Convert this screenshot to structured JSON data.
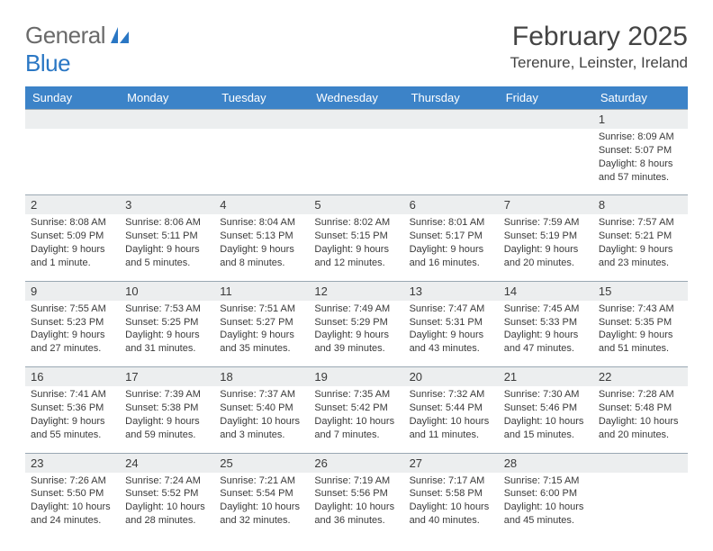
{
  "logo": {
    "line1": "General",
    "line2": "Blue"
  },
  "title": "February 2025",
  "subtitle": "Terenure, Leinster, Ireland",
  "colors": {
    "headerBg": "#3c83c8",
    "headerText": "#ffffff",
    "dayStripBg": "#eceeef",
    "borderTop": "#9aa8b3",
    "bodyText": "#3a3a3a",
    "logoGray": "#6a6a6a",
    "logoBlue": "#2a77c4",
    "background": "#ffffff"
  },
  "weekdays": [
    "Sunday",
    "Monday",
    "Tuesday",
    "Wednesday",
    "Thursday",
    "Friday",
    "Saturday"
  ],
  "weeks": [
    {
      "nums": [
        "",
        "",
        "",
        "",
        "",
        "",
        "1"
      ],
      "cells": [
        null,
        null,
        null,
        null,
        null,
        null,
        {
          "sunrise": "Sunrise: 8:09 AM",
          "sunset": "Sunset: 5:07 PM",
          "dl1": "Daylight: 8 hours",
          "dl2": "and 57 minutes."
        }
      ]
    },
    {
      "nums": [
        "2",
        "3",
        "4",
        "5",
        "6",
        "7",
        "8"
      ],
      "cells": [
        {
          "sunrise": "Sunrise: 8:08 AM",
          "sunset": "Sunset: 5:09 PM",
          "dl1": "Daylight: 9 hours",
          "dl2": "and 1 minute."
        },
        {
          "sunrise": "Sunrise: 8:06 AM",
          "sunset": "Sunset: 5:11 PM",
          "dl1": "Daylight: 9 hours",
          "dl2": "and 5 minutes."
        },
        {
          "sunrise": "Sunrise: 8:04 AM",
          "sunset": "Sunset: 5:13 PM",
          "dl1": "Daylight: 9 hours",
          "dl2": "and 8 minutes."
        },
        {
          "sunrise": "Sunrise: 8:02 AM",
          "sunset": "Sunset: 5:15 PM",
          "dl1": "Daylight: 9 hours",
          "dl2": "and 12 minutes."
        },
        {
          "sunrise": "Sunrise: 8:01 AM",
          "sunset": "Sunset: 5:17 PM",
          "dl1": "Daylight: 9 hours",
          "dl2": "and 16 minutes."
        },
        {
          "sunrise": "Sunrise: 7:59 AM",
          "sunset": "Sunset: 5:19 PM",
          "dl1": "Daylight: 9 hours",
          "dl2": "and 20 minutes."
        },
        {
          "sunrise": "Sunrise: 7:57 AM",
          "sunset": "Sunset: 5:21 PM",
          "dl1": "Daylight: 9 hours",
          "dl2": "and 23 minutes."
        }
      ]
    },
    {
      "nums": [
        "9",
        "10",
        "11",
        "12",
        "13",
        "14",
        "15"
      ],
      "cells": [
        {
          "sunrise": "Sunrise: 7:55 AM",
          "sunset": "Sunset: 5:23 PM",
          "dl1": "Daylight: 9 hours",
          "dl2": "and 27 minutes."
        },
        {
          "sunrise": "Sunrise: 7:53 AM",
          "sunset": "Sunset: 5:25 PM",
          "dl1": "Daylight: 9 hours",
          "dl2": "and 31 minutes."
        },
        {
          "sunrise": "Sunrise: 7:51 AM",
          "sunset": "Sunset: 5:27 PM",
          "dl1": "Daylight: 9 hours",
          "dl2": "and 35 minutes."
        },
        {
          "sunrise": "Sunrise: 7:49 AM",
          "sunset": "Sunset: 5:29 PM",
          "dl1": "Daylight: 9 hours",
          "dl2": "and 39 minutes."
        },
        {
          "sunrise": "Sunrise: 7:47 AM",
          "sunset": "Sunset: 5:31 PM",
          "dl1": "Daylight: 9 hours",
          "dl2": "and 43 minutes."
        },
        {
          "sunrise": "Sunrise: 7:45 AM",
          "sunset": "Sunset: 5:33 PM",
          "dl1": "Daylight: 9 hours",
          "dl2": "and 47 minutes."
        },
        {
          "sunrise": "Sunrise: 7:43 AM",
          "sunset": "Sunset: 5:35 PM",
          "dl1": "Daylight: 9 hours",
          "dl2": "and 51 minutes."
        }
      ]
    },
    {
      "nums": [
        "16",
        "17",
        "18",
        "19",
        "20",
        "21",
        "22"
      ],
      "cells": [
        {
          "sunrise": "Sunrise: 7:41 AM",
          "sunset": "Sunset: 5:36 PM",
          "dl1": "Daylight: 9 hours",
          "dl2": "and 55 minutes."
        },
        {
          "sunrise": "Sunrise: 7:39 AM",
          "sunset": "Sunset: 5:38 PM",
          "dl1": "Daylight: 9 hours",
          "dl2": "and 59 minutes."
        },
        {
          "sunrise": "Sunrise: 7:37 AM",
          "sunset": "Sunset: 5:40 PM",
          "dl1": "Daylight: 10 hours",
          "dl2": "and 3 minutes."
        },
        {
          "sunrise": "Sunrise: 7:35 AM",
          "sunset": "Sunset: 5:42 PM",
          "dl1": "Daylight: 10 hours",
          "dl2": "and 7 minutes."
        },
        {
          "sunrise": "Sunrise: 7:32 AM",
          "sunset": "Sunset: 5:44 PM",
          "dl1": "Daylight: 10 hours",
          "dl2": "and 11 minutes."
        },
        {
          "sunrise": "Sunrise: 7:30 AM",
          "sunset": "Sunset: 5:46 PM",
          "dl1": "Daylight: 10 hours",
          "dl2": "and 15 minutes."
        },
        {
          "sunrise": "Sunrise: 7:28 AM",
          "sunset": "Sunset: 5:48 PM",
          "dl1": "Daylight: 10 hours",
          "dl2": "and 20 minutes."
        }
      ]
    },
    {
      "nums": [
        "23",
        "24",
        "25",
        "26",
        "27",
        "28",
        ""
      ],
      "cells": [
        {
          "sunrise": "Sunrise: 7:26 AM",
          "sunset": "Sunset: 5:50 PM",
          "dl1": "Daylight: 10 hours",
          "dl2": "and 24 minutes."
        },
        {
          "sunrise": "Sunrise: 7:24 AM",
          "sunset": "Sunset: 5:52 PM",
          "dl1": "Daylight: 10 hours",
          "dl2": "and 28 minutes."
        },
        {
          "sunrise": "Sunrise: 7:21 AM",
          "sunset": "Sunset: 5:54 PM",
          "dl1": "Daylight: 10 hours",
          "dl2": "and 32 minutes."
        },
        {
          "sunrise": "Sunrise: 7:19 AM",
          "sunset": "Sunset: 5:56 PM",
          "dl1": "Daylight: 10 hours",
          "dl2": "and 36 minutes."
        },
        {
          "sunrise": "Sunrise: 7:17 AM",
          "sunset": "Sunset: 5:58 PM",
          "dl1": "Daylight: 10 hours",
          "dl2": "and 40 minutes."
        },
        {
          "sunrise": "Sunrise: 7:15 AM",
          "sunset": "Sunset: 6:00 PM",
          "dl1": "Daylight: 10 hours",
          "dl2": "and 45 minutes."
        },
        null
      ]
    }
  ]
}
